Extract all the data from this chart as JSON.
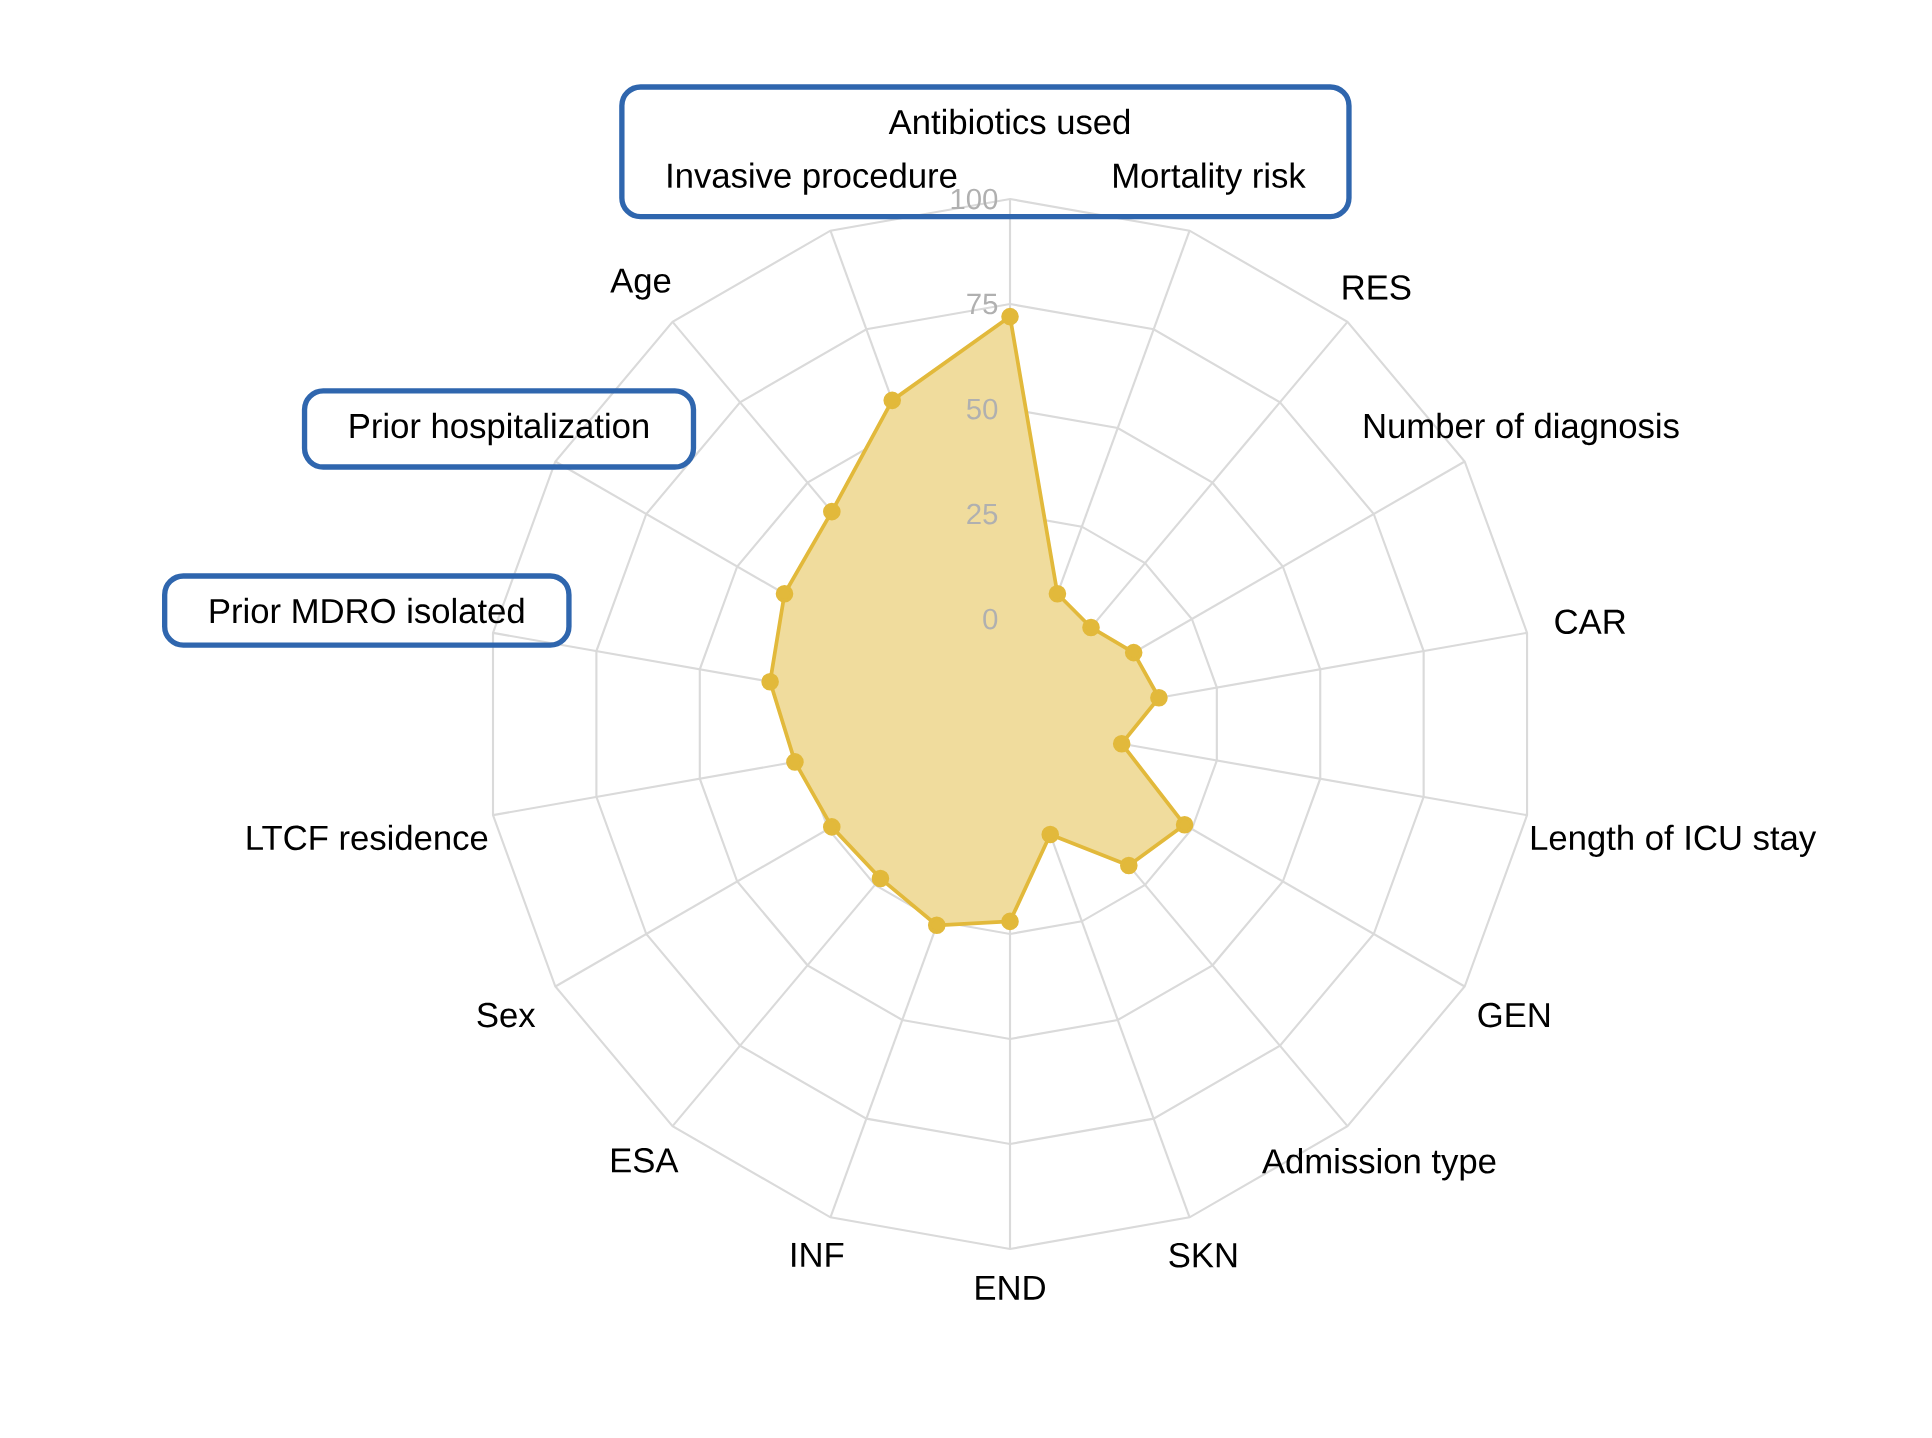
{
  "chart_data": {
    "type": "radar",
    "categories": [
      "Antibiotics used",
      "Mortality risk",
      "RES",
      "Number of diagnosis",
      "CAR",
      "Length of ICU stay",
      "GEN",
      "Admission type",
      "SKN",
      "END",
      "INF",
      "ESA",
      "Sex",
      "LTCF residence",
      "Prior MDRO isolated",
      "Prior hospitalization",
      "Age",
      "Invasive procedure"
    ],
    "series": [
      {
        "color": "#e2b93b",
        "values": [
          72,
          8,
          5,
          9,
          11,
          2,
          23,
          19,
          3,
          22,
          26,
          23,
          24,
          27,
          33,
          37,
          41,
          57
        ]
      }
    ],
    "ylim": [
      -25,
      100
    ],
    "yticks": [
      0,
      25,
      50,
      75,
      100
    ],
    "grid": true,
    "marker": "circle"
  }
}
